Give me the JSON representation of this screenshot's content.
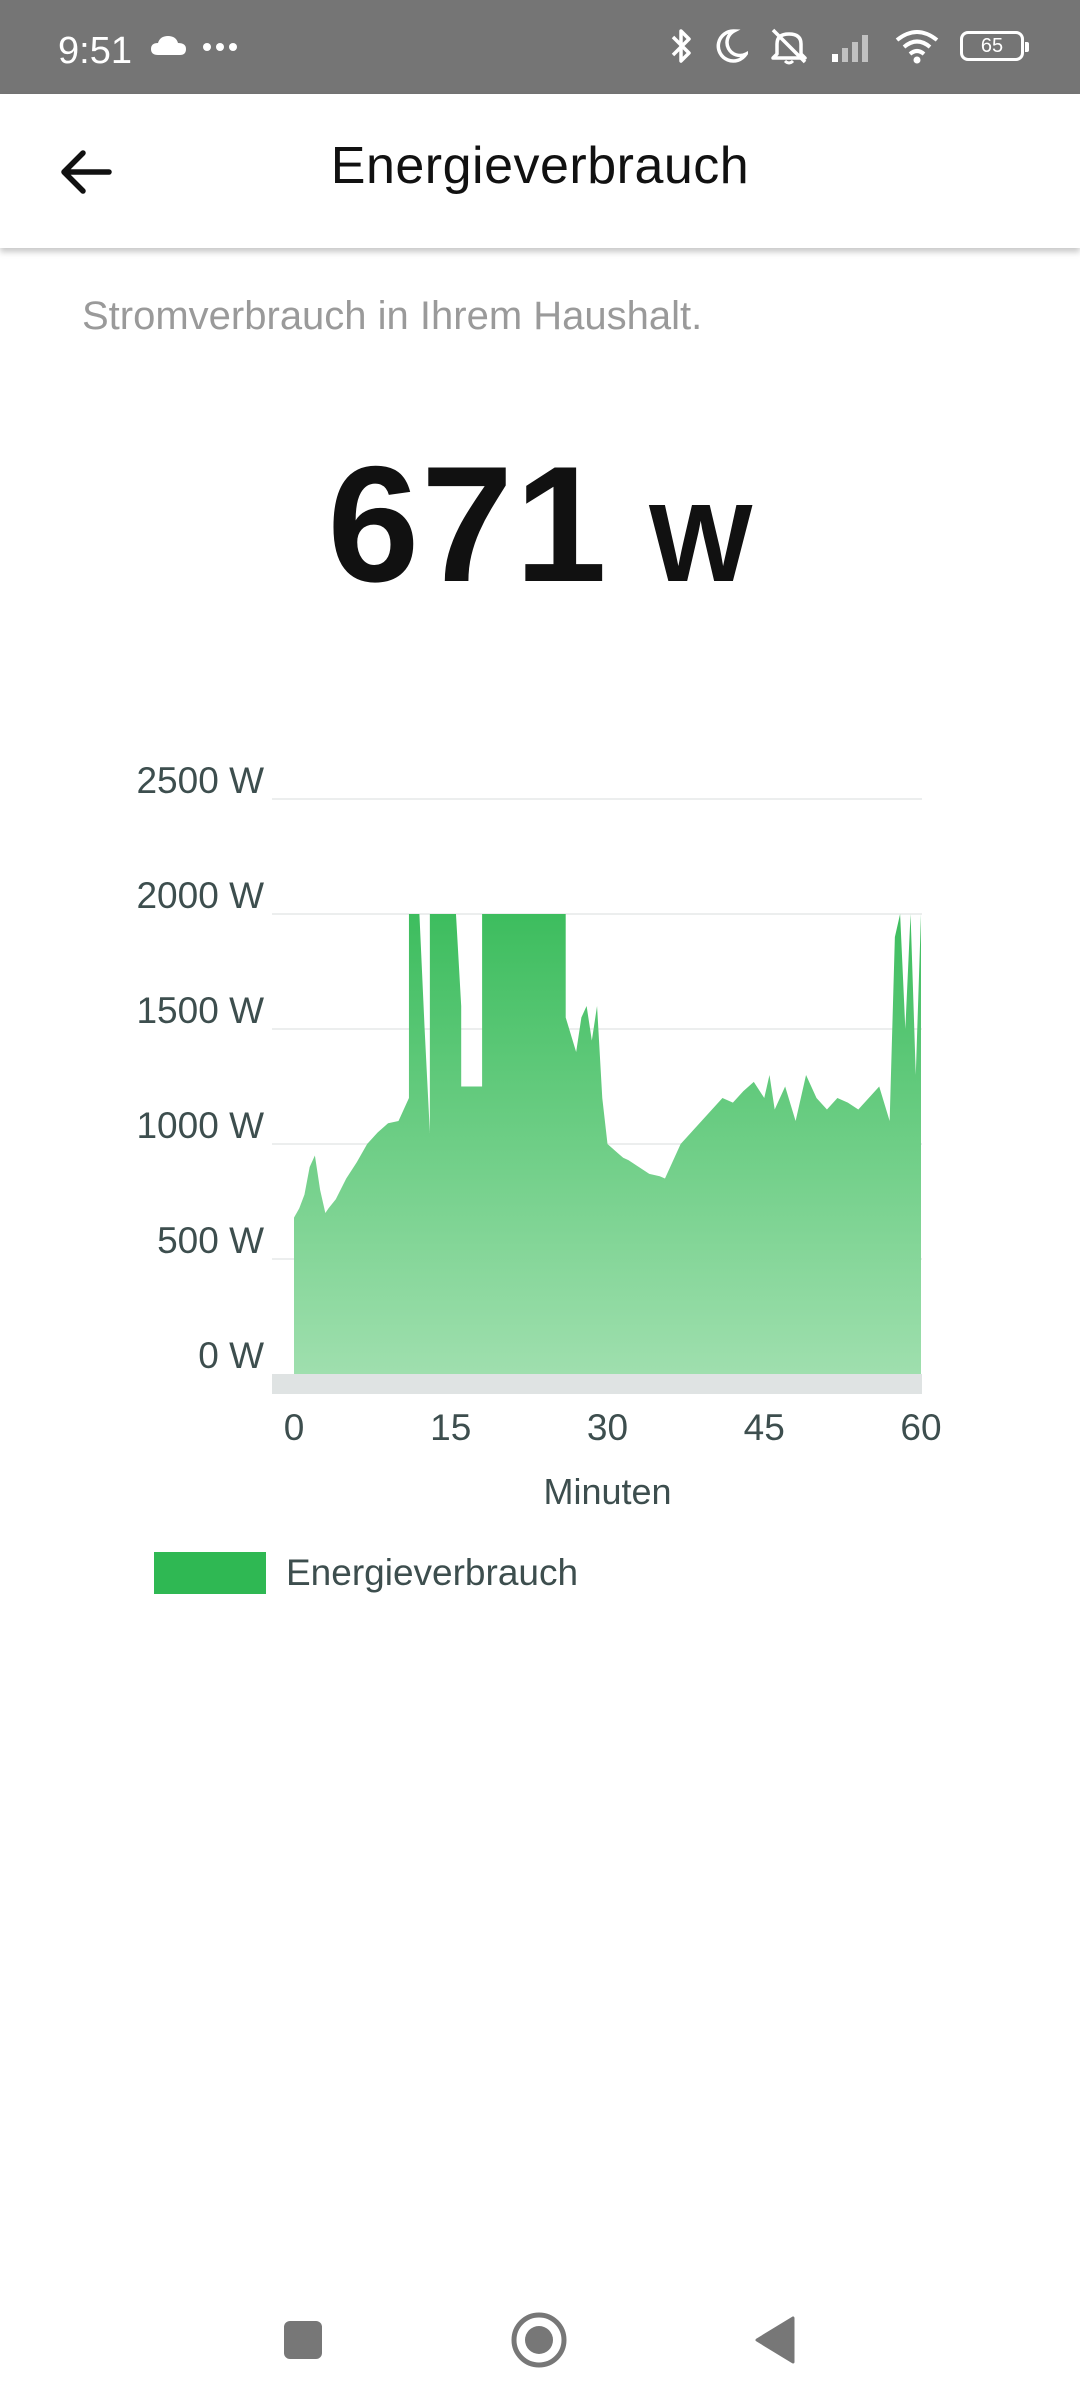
{
  "status_bar": {
    "time": "9:51",
    "left_icons": [
      "cloud-icon",
      "more-dots-icon"
    ],
    "right_icons": [
      "bluetooth-icon",
      "moon-icon",
      "alarm-off-icon",
      "signal-icon",
      "wifi-icon"
    ],
    "battery": "65"
  },
  "app_bar": {
    "title": "Energieverbrauch"
  },
  "main": {
    "subtitle": "Stromverbrauch in Ihrem Haushalt.",
    "current_value": "671",
    "current_unit": "W"
  },
  "chart_data": {
    "type": "area",
    "xlabel": "Minuten",
    "ylabel": "",
    "xlim": [
      0,
      60
    ],
    "ylim": [
      0,
      2500
    ],
    "x_ticks": [
      "0",
      "15",
      "30",
      "45",
      "60"
    ],
    "y_ticks": [
      "0 W",
      "500 W",
      "1000 W",
      "1500 W",
      "2000 W",
      "2500 W"
    ],
    "grid": true,
    "legend": "bottom-left",
    "color": "#2fb853",
    "series": [
      {
        "name": "Energieverbrauch",
        "x": [
          0,
          0.5,
          1,
          1.5,
          2,
          2.5,
          3,
          3.3,
          4,
          5,
          6,
          7,
          8,
          9,
          10,
          10.5,
          11,
          11,
          12,
          12.5,
          13,
          13,
          15.5,
          16,
          16,
          17,
          18,
          18,
          26,
          26,
          27,
          27.5,
          28,
          28.5,
          29,
          29.5,
          30,
          31,
          31.5,
          32,
          33,
          34,
          35,
          35.5,
          36,
          37,
          38,
          39,
          40,
          41,
          42,
          43,
          44,
          45,
          45.5,
          46,
          47,
          48,
          49,
          50,
          51,
          52,
          53,
          54,
          55,
          56,
          57,
          57.5,
          58,
          58.5,
          59,
          59.5,
          60
        ],
        "values": [
          680,
          720,
          780,
          900,
          950,
          800,
          700,
          720,
          760,
          850,
          920,
          1000,
          1050,
          1090,
          1100,
          1150,
          1200,
          2000,
          2000,
          1500,
          1050,
          2000,
          2000,
          1600,
          1250,
          1250,
          1250,
          2000,
          2000,
          1550,
          1400,
          1550,
          1600,
          1450,
          1600,
          1200,
          1000,
          960,
          940,
          930,
          900,
          870,
          860,
          850,
          900,
          1000,
          1050,
          1100,
          1150,
          1200,
          1180,
          1230,
          1270,
          1200,
          1300,
          1150,
          1250,
          1100,
          1300,
          1200,
          1150,
          1200,
          1180,
          1150,
          1200,
          1250,
          1100,
          1900,
          2000,
          1500,
          2000,
          1300,
          2000
        ]
      }
    ]
  },
  "legend": {
    "label": "Energieverbrauch",
    "color": "#2fb853"
  },
  "nav_bar": {
    "buttons": [
      "recents-icon",
      "home-icon",
      "back-triangle-icon"
    ]
  }
}
